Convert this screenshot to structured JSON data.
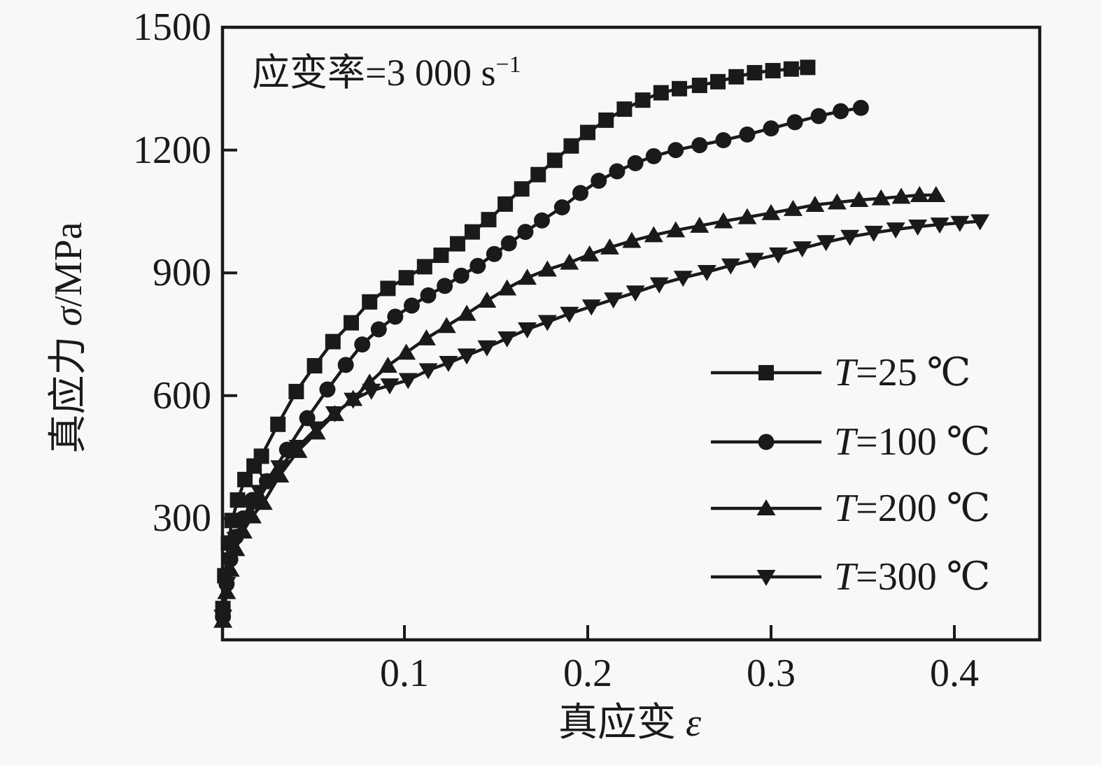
{
  "figure": {
    "background": "#f8f8f8",
    "ink": "#1a1a1a"
  },
  "annotation": {
    "text": "应变率=3 000 s⁻¹",
    "base": "应变率=3 000 s",
    "sup": "−1"
  },
  "axes": {
    "x": {
      "title": "真应变 ε",
      "title_cjk": "真应变 ",
      "title_symbol": "ε",
      "tick_labels": [
        "0.1",
        "0.2",
        "0.3",
        "0.4"
      ],
      "tick_values": [
        0.1,
        0.2,
        0.3,
        0.4
      ],
      "min": 0,
      "max": 0.447
    },
    "y": {
      "title": "真应力 σ/MPa",
      "title_cjk": "真应力 ",
      "title_symbol": "σ",
      "title_unit": "/MPa",
      "tick_labels": [
        "300",
        "600",
        "900",
        "1200",
        "1500"
      ],
      "tick_values": [
        300,
        600,
        900,
        1200,
        1500
      ],
      "min": 0,
      "max": 1500
    }
  },
  "legend": {
    "position": "lower-right"
  },
  "chart_data": {
    "type": "line",
    "title": "",
    "xlabel": "真应变 ε",
    "ylabel": "真应力 σ/MPa",
    "xlim": [
      0,
      0.447
    ],
    "ylim": [
      0,
      1500
    ],
    "grid": false,
    "legend_position": "lower right",
    "annotation": "应变率=3 000 s⁻¹",
    "series": [
      {
        "name": "T=25 ℃",
        "legend_var": "T",
        "legend_rest": "=25 ℃",
        "marker": "square",
        "points": [
          [
            0.001,
            80
          ],
          [
            0.002,
            160
          ],
          [
            0.004,
            240
          ],
          [
            0.006,
            295
          ],
          [
            0.009,
            345
          ],
          [
            0.013,
            395
          ],
          [
            0.018,
            428
          ],
          [
            0.022,
            452
          ],
          [
            0.031,
            530
          ],
          [
            0.041,
            610
          ],
          [
            0.051,
            673
          ],
          [
            0.061,
            732
          ],
          [
            0.071,
            778
          ],
          [
            0.081,
            829
          ],
          [
            0.091,
            862
          ],
          [
            0.101,
            888
          ],
          [
            0.111,
            915
          ],
          [
            0.12,
            943
          ],
          [
            0.129,
            971
          ],
          [
            0.137,
            1000
          ],
          [
            0.146,
            1030
          ],
          [
            0.155,
            1068
          ],
          [
            0.164,
            1105
          ],
          [
            0.173,
            1140
          ],
          [
            0.182,
            1175
          ],
          [
            0.191,
            1210
          ],
          [
            0.2,
            1243
          ],
          [
            0.21,
            1273
          ],
          [
            0.22,
            1300
          ],
          [
            0.23,
            1322
          ],
          [
            0.24,
            1340
          ],
          [
            0.25,
            1350
          ],
          [
            0.261,
            1358
          ],
          [
            0.271,
            1367
          ],
          [
            0.281,
            1379
          ],
          [
            0.291,
            1389
          ],
          [
            0.301,
            1394
          ],
          [
            0.311,
            1398
          ],
          [
            0.32,
            1402
          ]
        ]
      },
      {
        "name": "T=100 ℃",
        "legend_var": "T",
        "legend_rest": "=100 ℃",
        "marker": "circle",
        "points": [
          [
            0.001,
            60
          ],
          [
            0.003,
            140
          ],
          [
            0.005,
            200
          ],
          [
            0.008,
            255
          ],
          [
            0.012,
            300
          ],
          [
            0.017,
            345
          ],
          [
            0.025,
            391
          ],
          [
            0.036,
            468
          ],
          [
            0.047,
            545
          ],
          [
            0.058,
            615
          ],
          [
            0.068,
            675
          ],
          [
            0.077,
            725
          ],
          [
            0.086,
            762
          ],
          [
            0.095,
            793
          ],
          [
            0.104,
            820
          ],
          [
            0.113,
            845
          ],
          [
            0.122,
            868
          ],
          [
            0.131,
            893
          ],
          [
            0.14,
            917
          ],
          [
            0.149,
            946
          ],
          [
            0.157,
            972
          ],
          [
            0.166,
            1000
          ],
          [
            0.175,
            1028
          ],
          [
            0.186,
            1060
          ],
          [
            0.196,
            1095
          ],
          [
            0.206,
            1125
          ],
          [
            0.216,
            1148
          ],
          [
            0.226,
            1168
          ],
          [
            0.236,
            1185
          ],
          [
            0.248,
            1200
          ],
          [
            0.261,
            1212
          ],
          [
            0.274,
            1224
          ],
          [
            0.287,
            1238
          ],
          [
            0.3,
            1253
          ],
          [
            0.313,
            1268
          ],
          [
            0.326,
            1283
          ],
          [
            0.338,
            1295
          ],
          [
            0.349,
            1303
          ]
        ]
      },
      {
        "name": "T=200 ℃",
        "legend_var": "T",
        "legend_rest": "=200 ℃",
        "marker": "triangle-up",
        "points": [
          [
            0.001,
            50
          ],
          [
            0.003,
            120
          ],
          [
            0.005,
            175
          ],
          [
            0.008,
            225
          ],
          [
            0.012,
            268
          ],
          [
            0.017,
            305
          ],
          [
            0.023,
            338
          ],
          [
            0.032,
            405
          ],
          [
            0.042,
            465
          ],
          [
            0.052,
            510
          ],
          [
            0.062,
            555
          ],
          [
            0.072,
            592
          ],
          [
            0.081,
            632
          ],
          [
            0.091,
            673
          ],
          [
            0.101,
            705
          ],
          [
            0.112,
            740
          ],
          [
            0.123,
            770
          ],
          [
            0.134,
            800
          ],
          [
            0.145,
            832
          ],
          [
            0.156,
            862
          ],
          [
            0.167,
            888
          ],
          [
            0.178,
            908
          ],
          [
            0.19,
            925
          ],
          [
            0.201,
            945
          ],
          [
            0.212,
            962
          ],
          [
            0.224,
            978
          ],
          [
            0.236,
            992
          ],
          [
            0.248,
            1004
          ],
          [
            0.261,
            1015
          ],
          [
            0.274,
            1026
          ],
          [
            0.287,
            1036
          ],
          [
            0.3,
            1046
          ],
          [
            0.312,
            1056
          ],
          [
            0.324,
            1066
          ],
          [
            0.336,
            1072
          ],
          [
            0.348,
            1078
          ],
          [
            0.36,
            1082
          ],
          [
            0.371,
            1086
          ],
          [
            0.381,
            1090
          ],
          [
            0.39,
            1090
          ]
        ]
      },
      {
        "name": "T=300 ℃",
        "legend_var": "T",
        "legend_rest": "=300 ℃",
        "marker": "triangle-down",
        "points": [
          [
            0.001,
            60
          ],
          [
            0.003,
            140
          ],
          [
            0.005,
            200
          ],
          [
            0.008,
            250
          ],
          [
            0.012,
            295
          ],
          [
            0.016,
            330
          ],
          [
            0.021,
            365
          ],
          [
            0.026,
            392
          ],
          [
            0.032,
            425
          ],
          [
            0.042,
            475
          ],
          [
            0.052,
            520
          ],
          [
            0.062,
            557
          ],
          [
            0.072,
            590
          ],
          [
            0.082,
            612
          ],
          [
            0.092,
            625
          ],
          [
            0.102,
            638
          ],
          [
            0.113,
            662
          ],
          [
            0.124,
            680
          ],
          [
            0.134,
            698
          ],
          [
            0.145,
            718
          ],
          [
            0.156,
            740
          ],
          [
            0.167,
            762
          ],
          [
            0.178,
            780
          ],
          [
            0.19,
            800
          ],
          [
            0.202,
            818
          ],
          [
            0.214,
            835
          ],
          [
            0.226,
            852
          ],
          [
            0.239,
            872
          ],
          [
            0.252,
            888
          ],
          [
            0.265,
            902
          ],
          [
            0.278,
            918
          ],
          [
            0.291,
            932
          ],
          [
            0.304,
            945
          ],
          [
            0.317,
            960
          ],
          [
            0.33,
            975
          ],
          [
            0.343,
            988
          ],
          [
            0.356,
            998
          ],
          [
            0.368,
            1006
          ],
          [
            0.38,
            1013
          ],
          [
            0.392,
            1018
          ],
          [
            0.403,
            1022
          ],
          [
            0.414,
            1026
          ]
        ]
      }
    ]
  }
}
